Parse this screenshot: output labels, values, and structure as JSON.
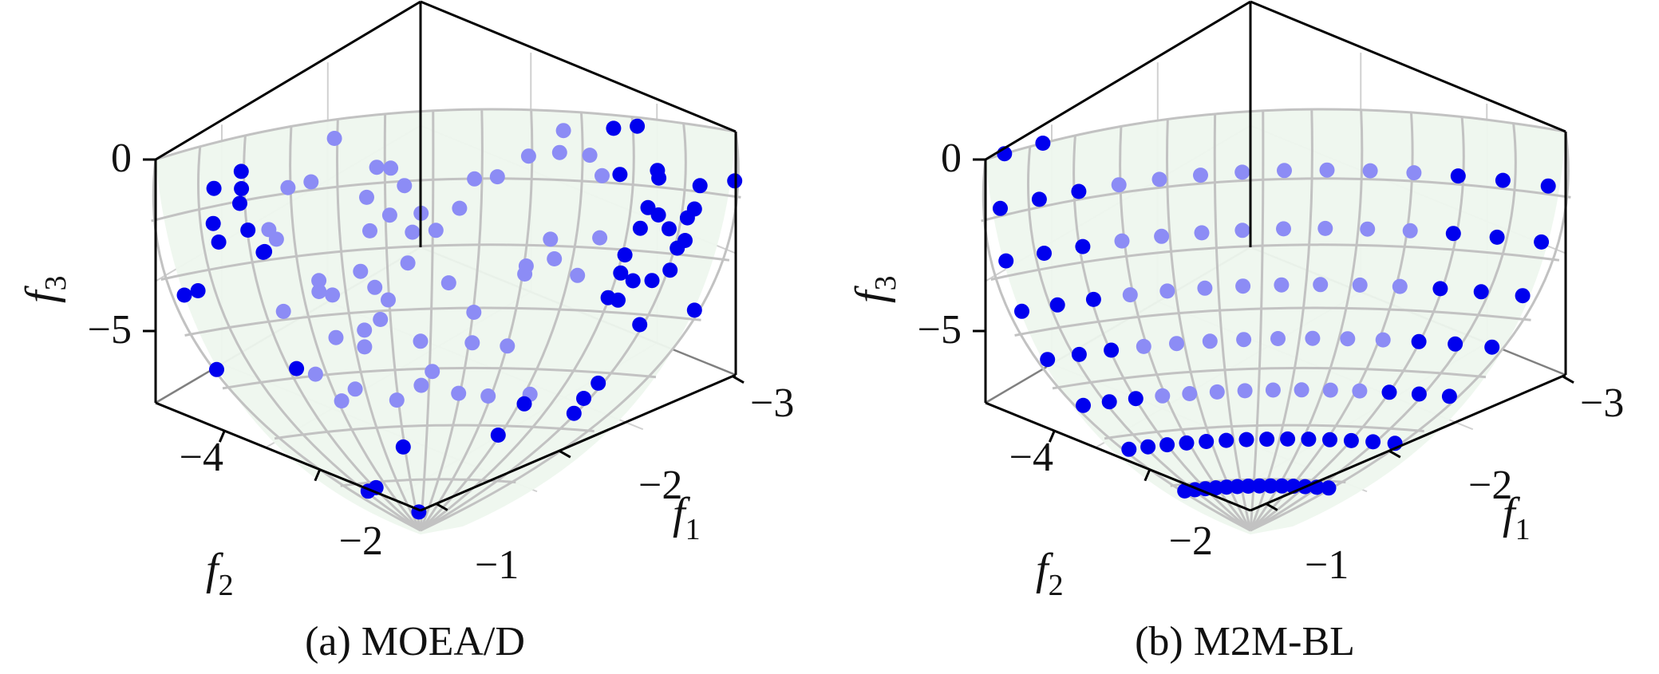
{
  "chart_data": [
    {
      "type": "scatter",
      "caption": "(a) MOEA/D",
      "xlabel": "f1",
      "ylabel": "f2",
      "zlabel": "f3",
      "x_ticks": [
        "−1",
        "−2",
        "−3"
      ],
      "y_ticks": [
        "−2",
        "−4"
      ],
      "z_ticks": [
        "0",
        "−5"
      ],
      "surface": "concave Pareto front, light green, grey mesh",
      "point_color": "#0000ee",
      "seed": 7,
      "n_points": 100
    },
    {
      "type": "scatter",
      "caption": "(b) M2M-BL",
      "xlabel": "f1",
      "ylabel": "f2",
      "zlabel": "f3",
      "x_ticks": [
        "−1",
        "−2",
        "−3"
      ],
      "y_ticks": [
        "−2",
        "−4"
      ],
      "z_ticks": [
        "0",
        "−5"
      ],
      "surface": "concave Pareto front, light green, grey mesh",
      "point_color": "#0000ee",
      "seed": 0,
      "n_points": 100
    }
  ]
}
